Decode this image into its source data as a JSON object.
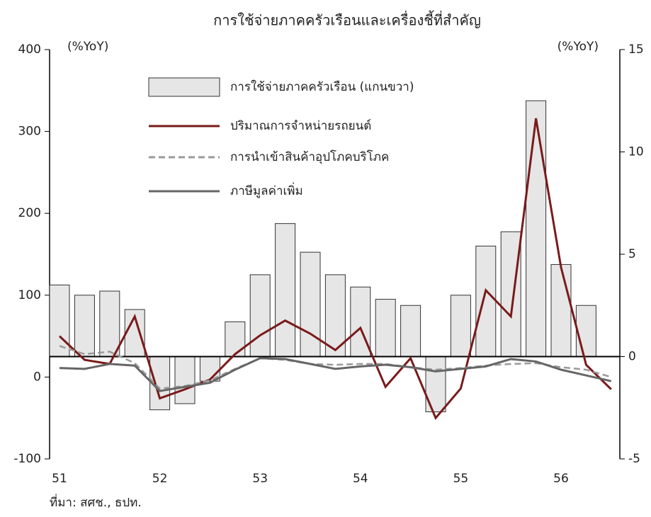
{
  "chart_data": {
    "type": "bar",
    "title": "การใช้จ่ายภาคครัวเรือนและเครื่องชี้ที่สำคัญ",
    "y_label": "(%YoY)",
    "y2_label": "(%YoY)",
    "note": "ที่มา: สศช., ธปท.",
    "categories": [
      "51",
      null,
      null,
      null,
      "52",
      null,
      null,
      null,
      "53",
      null,
      null,
      null,
      "54",
      null,
      null,
      null,
      "55",
      null,
      null,
      null,
      "56",
      null,
      null
    ],
    "ylim": [
      -100,
      400
    ],
    "yticks": [
      -100,
      0,
      100,
      200,
      300,
      400
    ],
    "y2lim": [
      -5,
      15
    ],
    "y2ticks": [
      -5,
      0,
      5,
      10,
      15
    ],
    "series": [
      {
        "name": "การใช้จ่ายภาคครัวเรือน (แกนขวา)",
        "type": "bar",
        "axis": "y2",
        "color": "#e6e6e6",
        "values": [
          3.5,
          3.0,
          3.2,
          2.3,
          -2.6,
          -2.3,
          -1.2,
          1.7,
          4.0,
          6.5,
          5.1,
          4.0,
          3.4,
          2.8,
          2.5,
          -2.7,
          3.0,
          5.4,
          6.1,
          12.5,
          4.5,
          2.5,
          null
        ]
      },
      {
        "name": "ปริมาณการจำหน่ายรถยนต์",
        "type": "line",
        "color": "#7a1a1a",
        "line_style": "solid",
        "values": [
          50,
          21,
          16,
          74,
          -26,
          -15,
          -3,
          28,
          51,
          69,
          53,
          33,
          60,
          -12,
          23,
          -50,
          -14,
          106,
          74,
          316,
          134,
          15,
          -15
        ]
      },
      {
        "name": "การนำเข้าสินค้าอุปโภคบริโภค",
        "type": "line",
        "color": "#9a9a9a",
        "line_style": "dashed",
        "values": [
          38,
          28,
          31,
          17,
          -14,
          -11,
          -4,
          10,
          23,
          21,
          16,
          15,
          16,
          16,
          12,
          9,
          11,
          14,
          16,
          17,
          12,
          9,
          0
        ]
      },
      {
        "name": "ภาษีมูลค่าเพิ่ม",
        "type": "line",
        "color": "#666666",
        "line_style": "solid",
        "values": [
          11,
          10,
          16,
          14,
          -17,
          -12,
          -7,
          9,
          23,
          22,
          16,
          10,
          13,
          15,
          12,
          7,
          10,
          13,
          22,
          19,
          9,
          2,
          -5
        ]
      }
    ]
  }
}
